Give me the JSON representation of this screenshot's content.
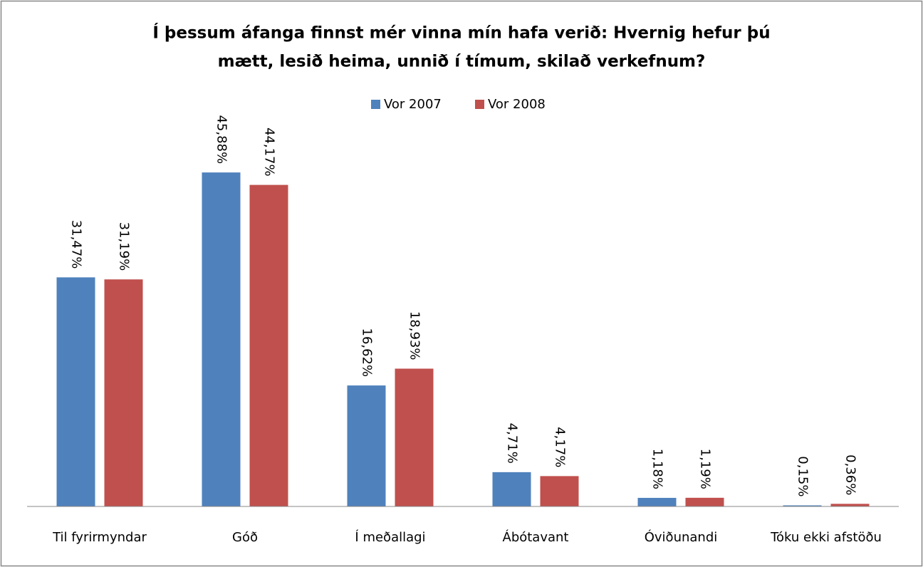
{
  "chart_data": {
    "type": "bar",
    "title": [
      "Í þessum áfanga finnst mér vinna mín hafa verið: Hvernig hefur þú",
      "mætt, lesið heima, unnið í tímum, skilað verkefnum?"
    ],
    "categories": [
      "Til fyrirmyndar",
      "Góð",
      "Í meðallagi",
      "Ábótavant",
      "Óviðunandi",
      "Tóku ekki afstöðu"
    ],
    "series": [
      {
        "name": "Vor 2007",
        "color": "#4f81bd",
        "values": [
          31.47,
          45.88,
          16.62,
          4.71,
          1.18,
          0.15
        ],
        "value_labels": [
          "31,47%",
          "45,88%",
          "16,62%",
          "4,71%",
          "1,18%",
          "0,15%"
        ]
      },
      {
        "name": "Vor 2008",
        "color": "#c0504d",
        "values": [
          31.19,
          44.17,
          18.93,
          4.17,
          1.19,
          0.36
        ],
        "value_labels": [
          "31,19%",
          "44,17%",
          "18,93%",
          "4,17%",
          "1,19%",
          "0,36%"
        ]
      }
    ],
    "ylim": [
      0,
      50
    ],
    "legend": "top"
  }
}
